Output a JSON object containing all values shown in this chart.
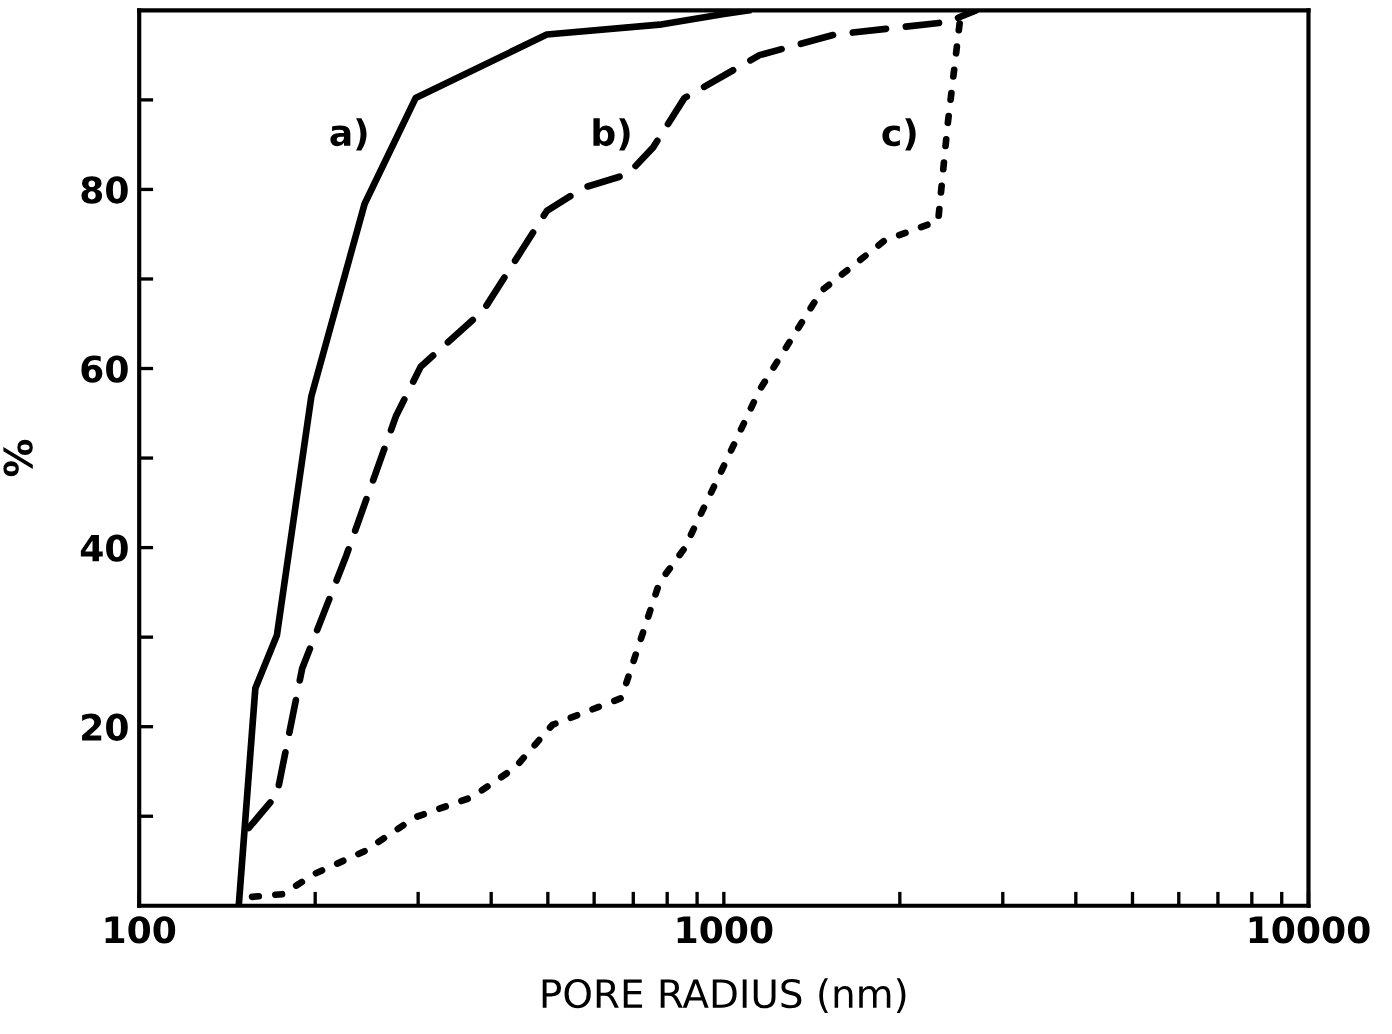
{
  "chart_data": {
    "type": "line",
    "xlabel": "PORE RADIUS (nm)",
    "ylabel": "%",
    "log": "x",
    "xlim": [
      100,
      10000
    ],
    "ylim": [
      0,
      100
    ],
    "xticks": [
      100,
      {
        "value": 200,
        "label": null
      },
      {
        "value": 300,
        "label": null
      },
      {
        "value": 400,
        "label": null
      },
      {
        "value": 500,
        "label": null
      },
      {
        "value": 600,
        "label": null
      },
      {
        "value": 700,
        "label": null
      },
      {
        "value": 800,
        "label": null
      },
      {
        "value": 900,
        "label": null
      },
      1000,
      {
        "value": 2000,
        "label": null
      },
      {
        "value": 3000,
        "label": null
      },
      {
        "value": 4000,
        "label": null
      },
      {
        "value": 5000,
        "label": null
      },
      {
        "value": 6000,
        "label": null
      },
      {
        "value": 7000,
        "label": null
      },
      {
        "value": 8000,
        "label": null
      },
      {
        "value": 9000,
        "label": null
      },
      10000
    ],
    "yticks": [
      {
        "value": 10,
        "label": null
      },
      20,
      {
        "value": 30,
        "label": null
      },
      40,
      {
        "value": 50,
        "label": null
      },
      60,
      {
        "value": 70,
        "label": null
      },
      80,
      {
        "value": 90,
        "label": null
      }
    ],
    "grid": false,
    "legend": false,
    "marker": "none",
    "series": [
      {
        "name": "a)",
        "color": "#000000",
        "line_style": "solid",
        "x": [
          148,
          158,
          172,
          197,
          243,
          297,
          498,
          776,
          1000,
          1100
        ],
        "values": [
          0,
          24.3,
          30.2,
          56.9,
          78.4,
          90.2,
          97.3,
          98.4,
          99.6,
          100
        ]
      },
      {
        "name": "b)",
        "color": "#000000",
        "line_style": "dashed",
        "x": [
          154,
          172,
          190,
          226,
          275,
          303,
          388,
          498,
          576,
          685,
          757,
          856,
          1151,
          1549,
          2415,
          2700
        ],
        "values": [
          8.7,
          12.4,
          26.5,
          39.1,
          54.7,
          60.2,
          66.5,
          77.6,
          80.2,
          81.7,
          84.7,
          90.2,
          95.0,
          97.3,
          98.7,
          100
        ]
      },
      {
        "name": "c)",
        "color": "#000000",
        "line_style": "dotted",
        "x": [
          156,
          176,
          200,
          243,
          297,
          370,
          439,
          509,
          668,
          776,
          856,
          993,
          1151,
          1334,
          1470,
          1884,
          2326,
          2415,
          2537,
          2570
        ],
        "values": [
          1.0,
          1.3,
          3.6,
          6.1,
          9.9,
          12.1,
          15.4,
          20.2,
          23.2,
          36.1,
          39.9,
          48.7,
          57.6,
          64.3,
          68.7,
          74.3,
          76.5,
          87.3,
          99.1,
          100
        ]
      }
    ]
  }
}
